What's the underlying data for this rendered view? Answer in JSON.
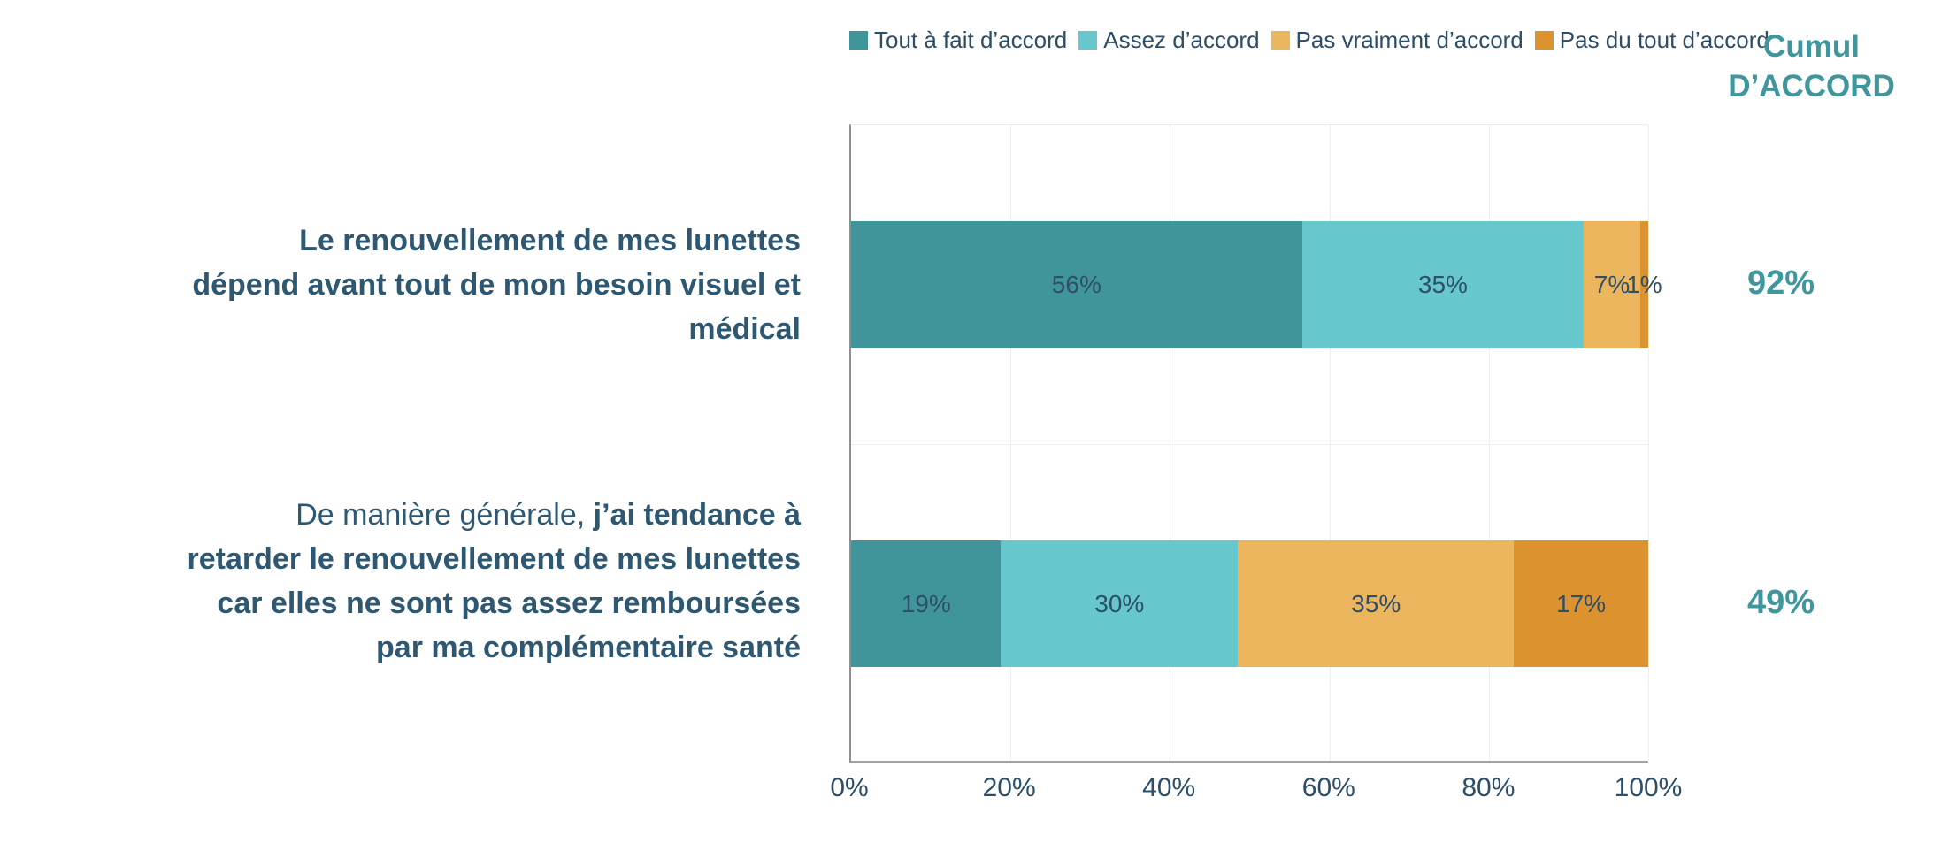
{
  "colors": {
    "accent_teal": "#3F969C",
    "ink": "#2C4E66",
    "category_text": "#2E5872",
    "grid": "#EFEFEF",
    "axis": "#8F8F8F"
  },
  "legend": {
    "items": [
      {
        "label": "Tout à fait d’accord",
        "color": "#3F9599"
      },
      {
        "label": "Assez d’accord",
        "color": "#66C8CC"
      },
      {
        "label": "Pas vraiment d’accord",
        "color": "#ECB65F"
      },
      {
        "label": "Pas du tout d’accord",
        "color": "#DD9230"
      }
    ]
  },
  "cumul": {
    "title_line1": "Cumul",
    "title_line2": "D’ACCORD",
    "values": [
      "92%",
      "49%"
    ]
  },
  "categories": [
    {
      "lines": [
        {
          "regular": "",
          "bold": "Le renouvellement de mes lunettes"
        },
        {
          "regular": "",
          "bold": "dépend avant tout de mon besoin visuel et"
        },
        {
          "regular": "",
          "bold": "médical"
        }
      ]
    },
    {
      "lines": [
        {
          "regular": "De manière générale, ",
          "bold": "j’ai tendance à"
        },
        {
          "regular": "",
          "bold": "retarder le renouvellement de mes lunettes"
        },
        {
          "regular": "",
          "bold": "car elles ne sont pas assez remboursées"
        },
        {
          "regular": "",
          "bold": "par ma complémentaire santé"
        }
      ]
    }
  ],
  "chart_data": {
    "type": "bar",
    "orientation": "horizontal",
    "stacked": true,
    "title": "",
    "xlabel": "",
    "ylabel": "",
    "categories": [
      "Le renouvellement de mes lunettes dépend avant tout de mon besoin visuel et médical",
      "De manière générale, j’ai tendance à retarder le renouvellement de mes lunettes car elles ne sont pas assez remboursées par ma complémentaire santé"
    ],
    "series": [
      {
        "name": "Tout à fait d’accord",
        "color": "#3F9599",
        "values": [
          56,
          19
        ]
      },
      {
        "name": "Assez d’accord",
        "color": "#66C8CC",
        "values": [
          35,
          30
        ]
      },
      {
        "name": "Pas vraiment d’accord",
        "color": "#ECB65F",
        "values": [
          7,
          35
        ]
      },
      {
        "name": "Pas du tout d’accord",
        "color": "#DD9230",
        "values": [
          1,
          17
        ]
      }
    ],
    "value_suffix": "%",
    "x_ticks": [
      "0%",
      "20%",
      "40%",
      "60%",
      "80%",
      "100%"
    ],
    "xlim": [
      0,
      100
    ],
    "grid": true,
    "legend_position": "top",
    "annotations": {
      "cumul_daccord_label": "Cumul D’ACCORD",
      "cumul_daccord_values_pct": [
        92,
        49
      ]
    }
  }
}
